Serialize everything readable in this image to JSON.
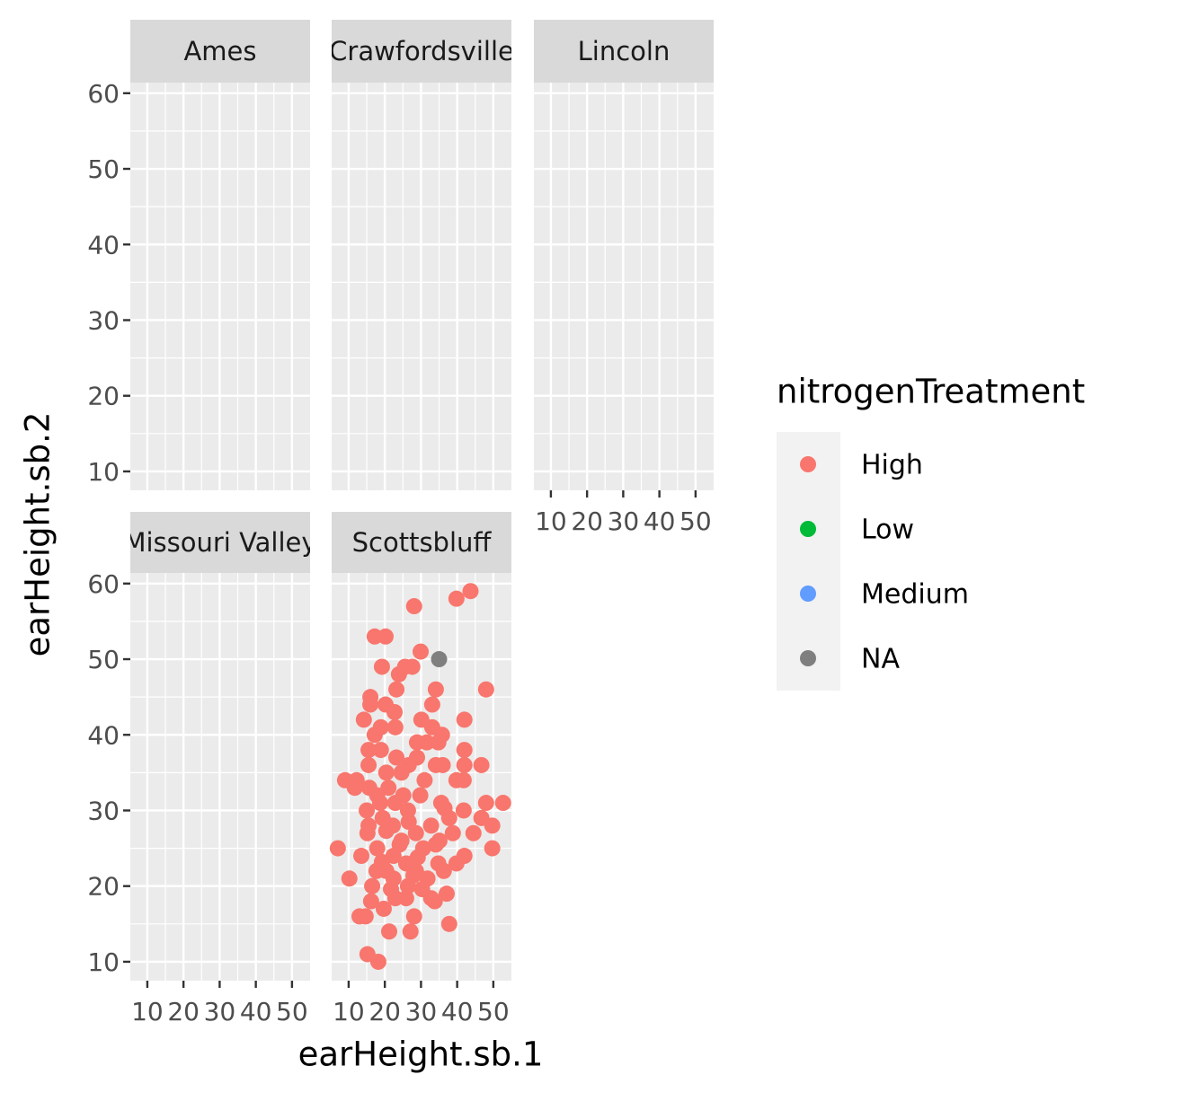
{
  "chart_data": {
    "type": "scatter",
    "x_label": "earHeight.sb.1",
    "y_label": "earHeight.sb.2",
    "legend_title": "nitrogenTreatment",
    "legend": "right",
    "grid": true,
    "xlim": [
      5.3,
      55
    ],
    "xticks": [
      10,
      20,
      30,
      40,
      50
    ],
    "ylim": [
      7.5,
      61.4
    ],
    "yticks": [
      10,
      20,
      30,
      40,
      50,
      60
    ],
    "facets": [
      "Ames",
      "Crawfordsville",
      "Lincoln",
      "Missouri Valley",
      "Scottsbluff"
    ],
    "series": [
      {
        "name": "High",
        "color": "#F8766D",
        "facet": "Scottsbluff",
        "x": [
          28.1,
          39.8,
          43.7,
          17.2,
          20.2,
          29.9,
          19.2,
          25.6,
          27.6,
          23.9,
          34.1,
          48,
          23.2,
          16,
          16,
          20.2,
          33.1,
          22.7,
          14.2,
          30.1,
          42,
          18.9,
          22.9,
          33.1,
          17.2,
          35.8,
          15.5,
          28.9,
          31.6,
          34.8,
          42,
          18.9,
          28.9,
          23.2,
          26.6,
          34.1,
          36,
          42,
          46.7,
          15.5,
          20.4,
          24.6,
          41.8,
          39.8,
          9,
          12.2,
          31,
          21,
          11.7,
          15.7,
          25.1,
          29.8,
          17.9,
          35.6,
          48,
          52.7,
          18.7,
          15,
          26.4,
          41.8,
          19.4,
          37.8,
          46.7,
          15.5,
          32.8,
          49.7,
          22.2,
          15.2,
          28.6,
          38.8,
          44.5,
          24.6,
          35.1,
          7,
          49.7,
          17.9,
          30.6,
          13.5,
          42,
          22.4,
          34.8,
          39.8,
          25.9,
          17.7,
          36.3,
          20.4,
          28.6,
          10.2,
          22.4,
          31.8,
          16.5,
          26.4,
          37.1,
          16.2,
          33.8,
          19.7,
          28.1,
          13,
          14.7,
          37.8,
          21.2,
          27.1,
          15.2,
          18.2,
          22.9,
          26.6,
          24.1,
          30.3,
          32.8,
          25.9,
          22.9,
          19.2,
          29.1,
          36.5,
          34.1,
          20.4,
          27.9,
          21.7
        ],
        "y": [
          57,
          58,
          59,
          53,
          53,
          51,
          49,
          49,
          49,
          48,
          46,
          46,
          46,
          45,
          44,
          44,
          44,
          43,
          42,
          42,
          42,
          41,
          41,
          41,
          40,
          40,
          38,
          39,
          39,
          39,
          38,
          38,
          37,
          37,
          36,
          36,
          36,
          36,
          36,
          36,
          35,
          35,
          34,
          34,
          34,
          34,
          34,
          33,
          33,
          33,
          32,
          32,
          32,
          31,
          31,
          31,
          31,
          30,
          30,
          30,
          29,
          29,
          29,
          28,
          28,
          28,
          28,
          27,
          27,
          27,
          27,
          26,
          26,
          25,
          25,
          25,
          25,
          24,
          24,
          24,
          23,
          23,
          23,
          22,
          22,
          22,
          22,
          21,
          21,
          21,
          20,
          20,
          19,
          18,
          18,
          17,
          16,
          16,
          16,
          15,
          14,
          14,
          11,
          10,
          31,
          28.5,
          25.5,
          19.6,
          18.4,
          18.4,
          18.4,
          23.2,
          23.8,
          30.3,
          25.5,
          27.3,
          21.4,
          19.6
        ]
      },
      {
        "name": "Low",
        "color": "#00BA38"
      },
      {
        "name": "Medium",
        "color": "#619CFF"
      },
      {
        "name": "NA",
        "color": "#7F7F7F",
        "facet": "Scottsbluff",
        "x": [
          35
        ],
        "y": [
          50
        ]
      }
    ]
  }
}
